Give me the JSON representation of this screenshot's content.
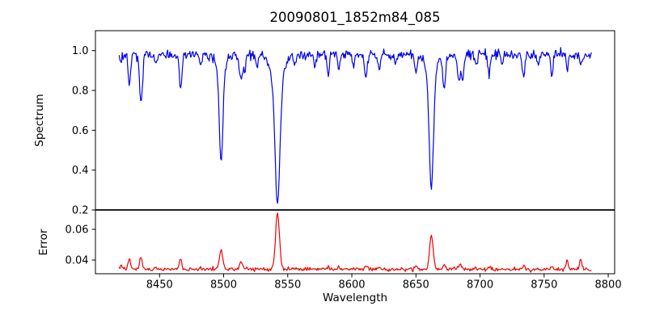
{
  "chart_data": {
    "type": "line",
    "title": "20090801_1852m84_085",
    "xlabel": "Wavelength",
    "xlim": [
      8400,
      8805
    ],
    "x_ticks": [
      8450,
      8500,
      8550,
      8600,
      8650,
      8700,
      8750,
      8800
    ],
    "x_start": 8418.5,
    "x_end": 8787,
    "x_step": 0.6,
    "axis_color": "#000000",
    "background_color": "#ffffff",
    "panels": [
      {
        "name": "spectrum",
        "ylabel": "Spectrum",
        "ylim": [
          0.2,
          1.1
        ],
        "y_ticks": [
          {
            "value": 0.2,
            "label": "0.2"
          },
          {
            "value": 0.4,
            "label": "0.4"
          },
          {
            "value": 0.6,
            "label": "0.6"
          },
          {
            "value": 0.8,
            "label": "0.8"
          },
          {
            "value": 1.0,
            "label": "1.0"
          }
        ],
        "line_color": "#0000ee",
        "continuum": 0.98,
        "noise_sigma": 0.013,
        "absorption_lines": [
          [
            8419.5,
            0.05,
            0.8
          ],
          [
            8426.5,
            0.16,
            0.9
          ],
          [
            8435.5,
            0.25,
            1.1
          ],
          [
            8447,
            0.05,
            0.8
          ],
          [
            8466.5,
            0.17,
            1.0
          ],
          [
            8482,
            0.05,
            0.8
          ],
          [
            8498,
            0.42,
            1.3
          ],
          [
            8498,
            0.12,
            3.0
          ],
          [
            8513.5,
            0.12,
            1.5
          ],
          [
            8516.5,
            0.07,
            0.9
          ],
          [
            8526,
            0.05,
            0.8
          ],
          [
            8542,
            0.55,
            1.8
          ],
          [
            8542,
            0.2,
            4.0
          ],
          [
            8556,
            0.05,
            0.8
          ],
          [
            8571,
            0.07,
            0.8
          ],
          [
            8581.5,
            0.11,
            0.9
          ],
          [
            8590,
            0.06,
            0.8
          ],
          [
            8601,
            0.05,
            0.8
          ],
          [
            8611,
            0.12,
            1.0
          ],
          [
            8621.5,
            0.08,
            0.9
          ],
          [
            8634,
            0.05,
            0.8
          ],
          [
            8650,
            0.09,
            0.9
          ],
          [
            8662,
            0.55,
            1.6
          ],
          [
            8662,
            0.12,
            3.8
          ],
          [
            8672,
            0.19,
            1.0
          ],
          [
            8683.5,
            0.14,
            1.0
          ],
          [
            8686.5,
            0.12,
            1.0
          ],
          [
            8697,
            0.05,
            0.8
          ],
          [
            8707,
            0.09,
            0.9
          ],
          [
            8717,
            0.06,
            0.8
          ],
          [
            8734,
            0.11,
            1.0
          ],
          [
            8745,
            0.05,
            0.8
          ],
          [
            8756,
            0.1,
            0.9
          ],
          [
            8768,
            0.07,
            0.8
          ],
          [
            8779,
            0.05,
            0.8
          ]
        ]
      },
      {
        "name": "error",
        "ylabel": "Error",
        "ylim": [
          0.0311,
          0.0726
        ],
        "y_ticks": [
          {
            "value": 0.04,
            "label": "0.04"
          },
          {
            "value": 0.06,
            "label": "0.06"
          }
        ],
        "line_color": "#ee0000",
        "baseline": 0.034,
        "noise_sigma": 0.0006,
        "peaks": [
          [
            8414,
            0.0012,
            5.0
          ],
          [
            8420,
            0.0015,
            0.8
          ],
          [
            8426.5,
            0.0065,
            0.9
          ],
          [
            8435.5,
            0.008,
            1.0
          ],
          [
            8447,
            0.0012,
            0.8
          ],
          [
            8466.5,
            0.006,
            1.0
          ],
          [
            8482,
            0.001,
            0.8
          ],
          [
            8498,
            0.0125,
            1.3
          ],
          [
            8513.5,
            0.005,
            1.3
          ],
          [
            8542,
            0.037,
            1.5
          ],
          [
            8556,
            0.001,
            0.8
          ],
          [
            8582,
            0.002,
            0.9
          ],
          [
            8590,
            0.0012,
            0.8
          ],
          [
            8611,
            0.0028,
            1.0
          ],
          [
            8621,
            0.0015,
            0.9
          ],
          [
            8650,
            0.0015,
            0.9
          ],
          [
            8662,
            0.022,
            1.4
          ],
          [
            8672,
            0.003,
            1.0
          ],
          [
            8684.5,
            0.0035,
            1.2
          ],
          [
            8707,
            0.0015,
            0.9
          ],
          [
            8734,
            0.002,
            1.0
          ],
          [
            8756,
            0.002,
            0.9
          ],
          [
            8768,
            0.006,
            0.8
          ],
          [
            8778.5,
            0.0075,
            0.8
          ],
          [
            8790,
            -0.0015,
            4.0
          ]
        ]
      }
    ]
  }
}
